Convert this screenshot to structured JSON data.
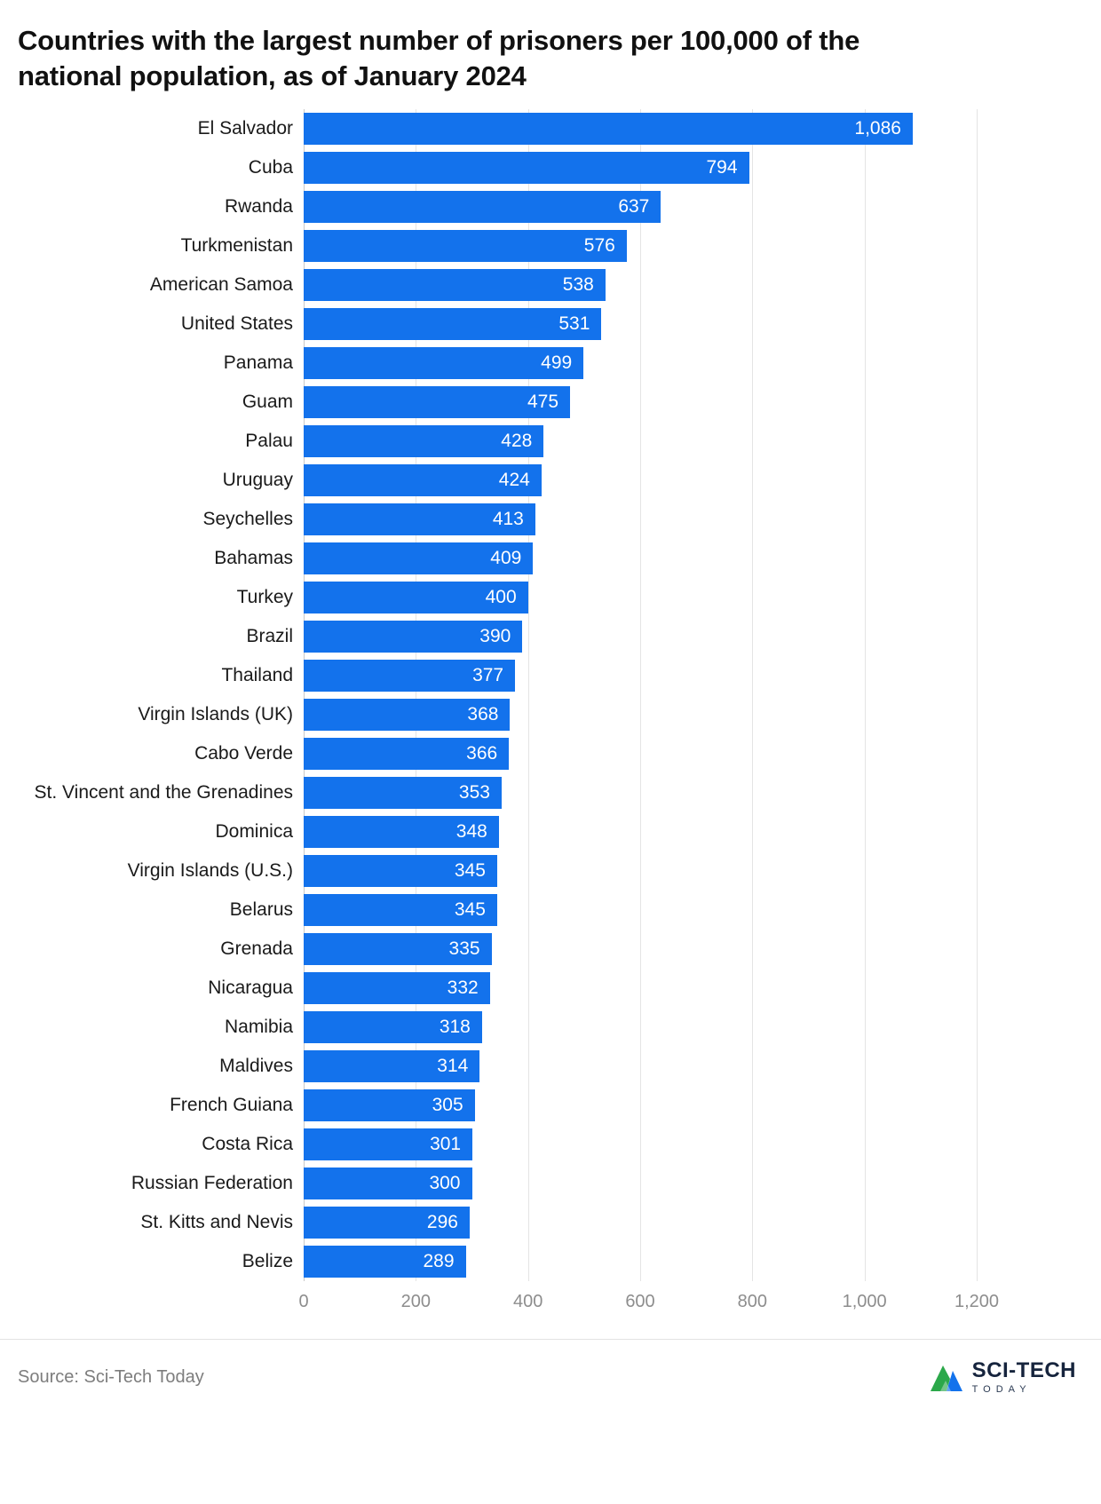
{
  "title": "Countries with the largest number of prisoners per 100,000 of the national population, as of January 2024",
  "source": "Source: Sci-Tech Today",
  "logo": {
    "line1": "SCI-TECH",
    "line2": "TODAY"
  },
  "colors": {
    "bar": "#1372ec",
    "value_label": "#ffffff",
    "gridline": "#e4e4e4",
    "axis_text": "#8d8d8d",
    "title_text": "#111111",
    "logo_green": "#2ba84a",
    "logo_blue": "#1372ec",
    "logo_navy": "#16243d"
  },
  "chart_data": {
    "type": "bar",
    "orientation": "horizontal",
    "title": "Countries with the largest number of prisoners per 100,000 of the national population, as of January 2024",
    "xlabel": "",
    "ylabel": "",
    "xlim": [
      0,
      1200
    ],
    "grid": true,
    "value_labels": "inside-end",
    "categories": [
      "El Salvador",
      "Cuba",
      "Rwanda",
      "Turkmenistan",
      "American Samoa",
      "United States",
      "Panama",
      "Guam",
      "Palau",
      "Uruguay",
      "Seychelles",
      "Bahamas",
      "Turkey",
      "Brazil",
      "Thailand",
      "Virgin Islands (UK)",
      "Cabo Verde",
      "St. Vincent and the Grenadines",
      "Dominica",
      "Virgin Islands (U.S.)",
      "Belarus",
      "Grenada",
      "Nicaragua",
      "Namibia",
      "Maldives",
      "French Guiana",
      "Costa Rica",
      "Russian Federation",
      "St. Kitts and Nevis",
      "Belize"
    ],
    "values": [
      1086,
      794,
      637,
      576,
      538,
      531,
      499,
      475,
      428,
      424,
      413,
      409,
      400,
      390,
      377,
      368,
      366,
      353,
      348,
      345,
      345,
      335,
      332,
      318,
      314,
      305,
      301,
      300,
      296,
      289
    ],
    "x_ticks": [
      0,
      200,
      400,
      600,
      800,
      1000,
      1200
    ],
    "x_tick_labels": [
      "0",
      "200",
      "400",
      "600",
      "800",
      "1,000",
      "1,200"
    ]
  }
}
